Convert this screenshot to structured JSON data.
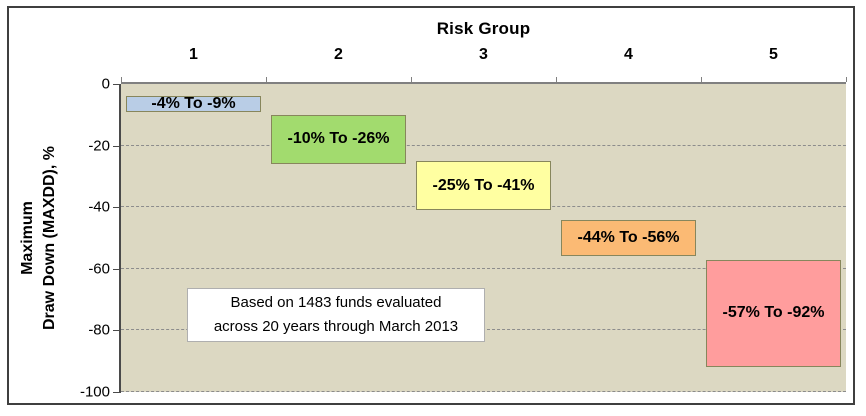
{
  "chart_data": {
    "type": "bar",
    "subtype": "floating-range-columns",
    "title": "Risk Group",
    "x_axis": {
      "title": "Risk Group",
      "position": "top",
      "categories": [
        "1",
        "2",
        "3",
        "4",
        "5"
      ]
    },
    "y_axis": {
      "title_lines": [
        "Maximum",
        "Draw Down (MAXDD), %"
      ],
      "ticks": [
        0,
        -20,
        -40,
        -60,
        -80,
        -100
      ],
      "tick_labels": [
        "0",
        "-20",
        "-40",
        "-60",
        "-80",
        "-100"
      ],
      "range": [
        0,
        -100
      ],
      "unit": "%"
    },
    "grid": "dashed-horizontal",
    "plot_background": "#DCD8C2",
    "bars": [
      {
        "group": "1",
        "from": -4,
        "to": -9,
        "label": "-4% To -9%",
        "fill": "#B9CDE6"
      },
      {
        "group": "2",
        "from": -10,
        "to": -26,
        "label": "-10% To -26%",
        "fill": "#A2DB6E"
      },
      {
        "group": "3",
        "from": -25,
        "to": -41,
        "label": "-25% To -41%",
        "fill": "#FFFFA1"
      },
      {
        "group": "4",
        "from": -44,
        "to": -56,
        "label": "-44% To -56%",
        "fill": "#FBBA74"
      },
      {
        "group": "5",
        "from": -57,
        "to": -92,
        "label": "-57% To -92%",
        "fill": "#FF9D9D"
      }
    ],
    "annotation": {
      "lines": [
        "Based on 1483 funds evaluated",
        "across 20 years through March 2013"
      ]
    },
    "colors": {
      "box_border": "#87865C",
      "frame_border": "#3F3F3F",
      "gridline": "#8C8C8C",
      "top_axis": "#808080",
      "y_axis": "#4A4A4A"
    }
  }
}
